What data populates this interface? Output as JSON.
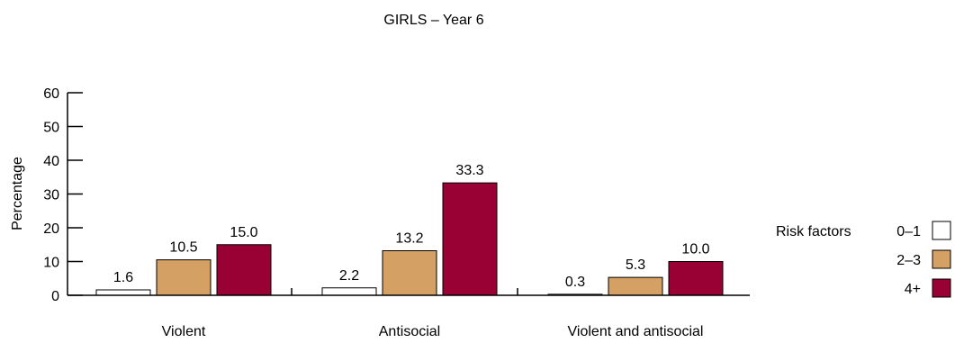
{
  "chart_data": {
    "type": "bar",
    "title": "GIRLS – Year 6",
    "xlabel": "",
    "ylabel": "Percentage",
    "ylim": [
      0,
      60
    ],
    "yticks": [
      0,
      10,
      20,
      30,
      40,
      50,
      60
    ],
    "grid": false,
    "categories": [
      "Violent",
      "Antisocial",
      "Violent and antisocial"
    ],
    "series": [
      {
        "name": "0–1",
        "values": [
          1.6,
          2.2,
          0.3
        ],
        "labels": [
          "1.6",
          "2.2",
          "0.3"
        ]
      },
      {
        "name": "2–3",
        "values": [
          10.5,
          13.2,
          5.3
        ],
        "labels": [
          "10.5",
          "13.2",
          "5.3"
        ]
      },
      {
        "name": "4+",
        "values": [
          15.0,
          33.3,
          10.0
        ],
        "labels": [
          "15.0",
          "33.3",
          "10.0"
        ]
      }
    ],
    "legend": {
      "title": "Risk factors",
      "placement": "right"
    },
    "colors": [
      "#ffffff",
      "#d4a063",
      "#990033"
    ]
  }
}
